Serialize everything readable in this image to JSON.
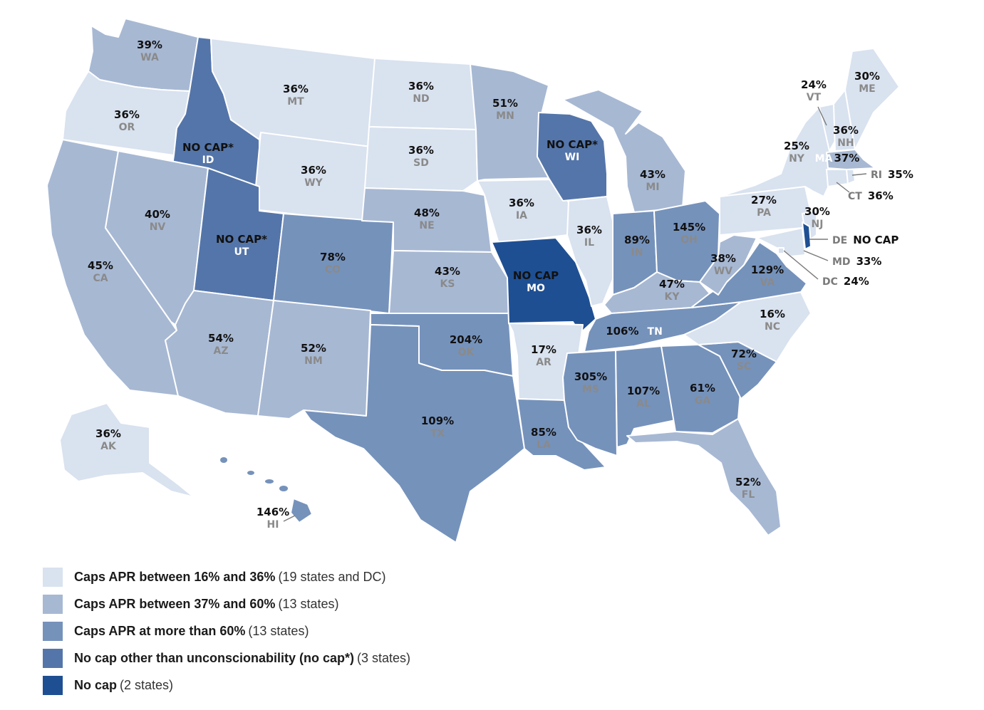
{
  "colors": {
    "tier1": "#d9e2ef",
    "tier2": "#a7b8d3",
    "tier3": "#7592bb",
    "tier4": "#5475a9",
    "tier5": "#1f4f93",
    "label_on_light": "#8a8a8a",
    "label_on_dark": "#ffffff"
  },
  "states": [
    {
      "abbr": "WA",
      "rate": "39%",
      "tier": 2
    },
    {
      "abbr": "OR",
      "rate": "36%",
      "tier": 1
    },
    {
      "abbr": "CA",
      "rate": "45%",
      "tier": 2
    },
    {
      "abbr": "ID",
      "rate": "NO CAP*",
      "tier": 4
    },
    {
      "abbr": "NV",
      "rate": "40%",
      "tier": 2
    },
    {
      "abbr": "MT",
      "rate": "36%",
      "tier": 1
    },
    {
      "abbr": "WY",
      "rate": "36%",
      "tier": 1
    },
    {
      "abbr": "UT",
      "rate": "NO CAP*",
      "tier": 4
    },
    {
      "abbr": "AZ",
      "rate": "54%",
      "tier": 2
    },
    {
      "abbr": "CO",
      "rate": "78%",
      "tier": 3
    },
    {
      "abbr": "NM",
      "rate": "52%",
      "tier": 2
    },
    {
      "abbr": "ND",
      "rate": "36%",
      "tier": 1
    },
    {
      "abbr": "SD",
      "rate": "36%",
      "tier": 1
    },
    {
      "abbr": "NE",
      "rate": "48%",
      "tier": 2
    },
    {
      "abbr": "KS",
      "rate": "43%",
      "tier": 2
    },
    {
      "abbr": "OK",
      "rate": "204%",
      "tier": 3
    },
    {
      "abbr": "TX",
      "rate": "109%",
      "tier": 3
    },
    {
      "abbr": "MN",
      "rate": "51%",
      "tier": 2
    },
    {
      "abbr": "IA",
      "rate": "36%",
      "tier": 1
    },
    {
      "abbr": "MO",
      "rate": "NO CAP",
      "tier": 5
    },
    {
      "abbr": "AR",
      "rate": "17%",
      "tier": 1
    },
    {
      "abbr": "LA",
      "rate": "85%",
      "tier": 3
    },
    {
      "abbr": "WI",
      "rate": "NO CAP*",
      "tier": 4
    },
    {
      "abbr": "IL",
      "rate": "36%",
      "tier": 1
    },
    {
      "abbr": "MI",
      "rate": "43%",
      "tier": 2
    },
    {
      "abbr": "IN",
      "rate": "89%",
      "tier": 3
    },
    {
      "abbr": "OH",
      "rate": "145%",
      "tier": 3
    },
    {
      "abbr": "KY",
      "rate": "47%",
      "tier": 2
    },
    {
      "abbr": "TN",
      "rate": "106%",
      "tier": 3
    },
    {
      "abbr": "MS",
      "rate": "305%",
      "tier": 3
    },
    {
      "abbr": "AL",
      "rate": "107%",
      "tier": 3
    },
    {
      "abbr": "GA",
      "rate": "61%",
      "tier": 3
    },
    {
      "abbr": "FL",
      "rate": "52%",
      "tier": 2
    },
    {
      "abbr": "SC",
      "rate": "72%",
      "tier": 3
    },
    {
      "abbr": "NC",
      "rate": "16%",
      "tier": 1
    },
    {
      "abbr": "VA",
      "rate": "129%",
      "tier": 3
    },
    {
      "abbr": "WV",
      "rate": "38%",
      "tier": 2
    },
    {
      "abbr": "PA",
      "rate": "27%",
      "tier": 1
    },
    {
      "abbr": "NY",
      "rate": "25%",
      "tier": 1
    },
    {
      "abbr": "VT",
      "rate": "24%",
      "tier": 1
    },
    {
      "abbr": "NH",
      "rate": "36%",
      "tier": 1
    },
    {
      "abbr": "ME",
      "rate": "30%",
      "tier": 1
    },
    {
      "abbr": "MA",
      "rate": "37%",
      "tier": 2
    },
    {
      "abbr": "RI",
      "rate": "35%",
      "tier": 1
    },
    {
      "abbr": "CT",
      "rate": "36%",
      "tier": 1
    },
    {
      "abbr": "NJ",
      "rate": "30%",
      "tier": 1
    },
    {
      "abbr": "DE",
      "rate": "NO CAP",
      "tier": 5
    },
    {
      "abbr": "MD",
      "rate": "33%",
      "tier": 1
    },
    {
      "abbr": "DC",
      "rate": "24%",
      "tier": 1
    },
    {
      "abbr": "AK",
      "rate": "36%",
      "tier": 1
    },
    {
      "abbr": "HI",
      "rate": "146%",
      "tier": 3
    }
  ],
  "legend": [
    {
      "bold": "Caps APR between 16% and 36%",
      "note": "(19 states and DC)",
      "tier": 1
    },
    {
      "bold": "Caps APR between 37% and 60%",
      "note": "(13 states)",
      "tier": 2
    },
    {
      "bold": "Caps APR at more than 60%",
      "note": "(13 states)",
      "tier": 3
    },
    {
      "bold": "No cap other than unconscionability (no cap*)",
      "note": "(3 states)",
      "tier": 4
    },
    {
      "bold": "No cap",
      "note": "(2 states)",
      "tier": 5
    }
  ]
}
